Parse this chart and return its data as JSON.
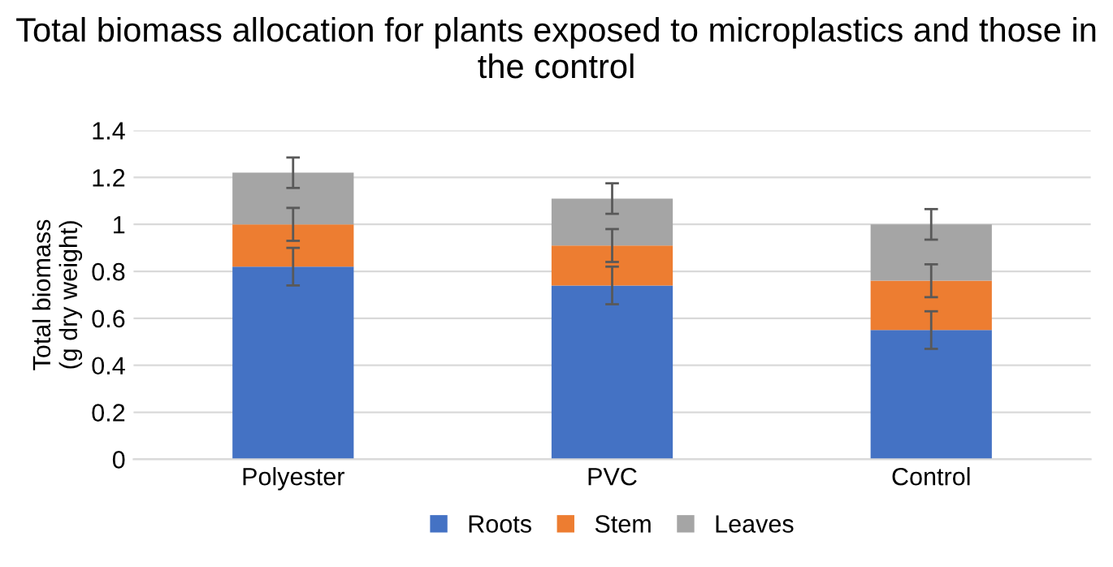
{
  "chart_data": {
    "type": "bar",
    "title": "Total biomass allocation for plants exposed to microplastics and those in the control",
    "ylabel": "Total biomass\n(g dry weight)",
    "categories": [
      "Polyester",
      "PVC",
      "Control"
    ],
    "stacked": true,
    "series": [
      {
        "name": "Roots",
        "color": "#4472c4",
        "values": [
          0.82,
          0.74,
          0.55
        ],
        "errors": [
          0.08,
          0.08,
          0.08
        ]
      },
      {
        "name": "Stem",
        "color": "#ed7d31",
        "values": [
          0.18,
          0.17,
          0.21
        ],
        "errors": [
          0.07,
          0.07,
          0.07
        ]
      },
      {
        "name": "Leaves",
        "color": "#a5a5a5",
        "values": [
          0.22,
          0.2,
          0.24
        ],
        "errors": [
          0.065,
          0.065,
          0.065
        ]
      }
    ],
    "ylim": [
      0,
      1.4
    ],
    "yticks": [
      0,
      0.2,
      0.4,
      0.6,
      0.8,
      1,
      1.2,
      1.4
    ],
    "grid": "y",
    "legend": "bottom"
  }
}
